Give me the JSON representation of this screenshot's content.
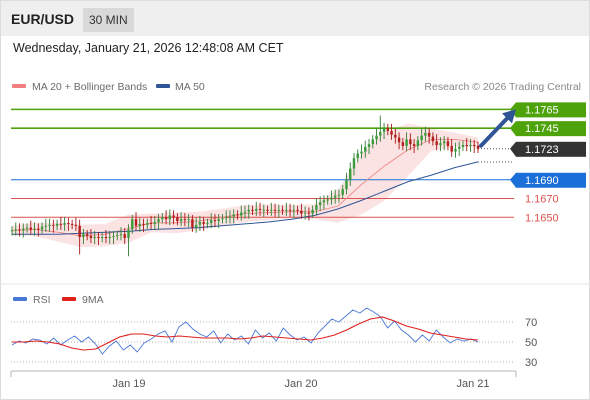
{
  "header": {
    "symbol": "EUR/USD",
    "timeframe": "30 MIN"
  },
  "timestamp": "Wednesday, January 21, 2026 12:48:08 AM CET",
  "legend": [
    {
      "label": "MA 20 + Bollinger Bands",
      "color": "#f08080"
    },
    {
      "label": "MA 50",
      "color": "#2f5597"
    }
  ],
  "credit": "Research © 2026 Trading Central",
  "indicator_legend": [
    {
      "label": "RSI",
      "color": "#4a78d6"
    },
    {
      "label": "9MA",
      "color": "#e0201b"
    }
  ],
  "chart_data": [
    {
      "type": "candlestick",
      "y_range": [
        1.158,
        1.1775
      ],
      "x_labels": [
        "Jan 19",
        "Jan 20",
        "Jan 21"
      ],
      "levels": [
        {
          "value": 1.1765,
          "label": "1.1765",
          "role": "resistance",
          "color": "#4ea20a"
        },
        {
          "value": 1.1745,
          "label": "1.1745",
          "role": "resistance",
          "color": "#4ea20a"
        },
        {
          "value": 1.1723,
          "label": "1.1723",
          "role": "last price",
          "color": "#333333"
        },
        {
          "value": 1.169,
          "label": "1.1690",
          "role": "pivot",
          "color": "#1a6fd8"
        },
        {
          "value": 1.167,
          "label": "1.1670",
          "role": "support",
          "color": "#d9534f"
        },
        {
          "value": 1.165,
          "label": "1.1650",
          "role": "support",
          "color": "#d9534f"
        }
      ],
      "trend_arrow": {
        "direction": "up",
        "color": "#2f5597"
      },
      "series": [
        {
          "name": "Price",
          "close": [
            1.1636,
            1.1637,
            1.1636,
            1.1638,
            1.1639,
            1.1637,
            1.1638,
            1.1637,
            1.164,
            1.1641,
            1.1642,
            1.1641,
            1.1643,
            1.1642,
            1.1644,
            1.1643,
            1.1642,
            1.1641,
            1.1629,
            1.1632,
            1.163,
            1.1628,
            1.1629,
            1.1628,
            1.1629,
            1.1628,
            1.1629,
            1.163,
            1.1631,
            1.1632,
            1.1628,
            1.1637,
            1.1648,
            1.1641,
            1.1643,
            1.1642,
            1.1644,
            1.1643,
            1.1645,
            1.1648,
            1.165,
            1.1648,
            1.1652,
            1.165,
            1.1646,
            1.1648,
            1.1647,
            1.1648,
            1.1639,
            1.1642,
            1.1645,
            1.1643,
            1.1644,
            1.1647,
            1.1646,
            1.1648,
            1.1649,
            1.165,
            1.1651,
            1.1653,
            1.1652,
            1.1655,
            1.1656,
            1.1658,
            1.1657,
            1.1659,
            1.1658,
            1.1658,
            1.1657,
            1.1658,
            1.1657,
            1.1658,
            1.1657,
            1.1658,
            1.1657,
            1.1658,
            1.1657,
            1.1654,
            1.1655,
            1.1654,
            1.1658,
            1.1663,
            1.1666,
            1.1668,
            1.1669,
            1.1671,
            1.1673,
            1.1674,
            1.168,
            1.169,
            1.1702,
            1.1713,
            1.1718,
            1.172,
            1.1725,
            1.1728,
            1.1733,
            1.1737,
            1.1741,
            1.1745,
            1.1742,
            1.1738,
            1.1735,
            1.173,
            1.1726,
            1.1733,
            1.1728,
            1.1726,
            1.1732,
            1.1737,
            1.174,
            1.1736,
            1.1731,
            1.1727,
            1.1729,
            1.1731,
            1.1726,
            1.172,
            1.1723,
            1.1725,
            1.1727,
            1.1726,
            1.1727,
            1.1726,
            1.1723
          ]
        },
        {
          "name": "MA 50",
          "values": [
            1.1632,
            1.1632,
            1.1632,
            1.1633,
            1.1634,
            1.1635,
            1.1637,
            1.1638,
            1.1639,
            1.1641,
            1.1643,
            1.1645,
            1.1648,
            1.1652,
            1.1659,
            1.1668,
            1.1678,
            1.1688,
            1.1695,
            1.1703,
            1.1709
          ]
        },
        {
          "name": "MA 20",
          "values": [
            1.1636,
            1.1637,
            1.1634,
            1.163,
            1.1632,
            1.1638,
            1.1644,
            1.1644,
            1.1646,
            1.165,
            1.1654,
            1.1655,
            1.1656,
            1.1656,
            1.1662,
            1.1685,
            1.1705,
            1.1722,
            1.1733,
            1.1733,
            1.173
          ]
        },
        {
          "name": "Bollinger upper",
          "values": [
            1.1641,
            1.1644,
            1.1644,
            1.1642,
            1.1643,
            1.1653,
            1.1654,
            1.1655,
            1.1656,
            1.1659,
            1.1663,
            1.1664,
            1.1663,
            1.1664,
            1.168,
            1.1717,
            1.1742,
            1.175,
            1.1745,
            1.174,
            1.1735
          ]
        },
        {
          "name": "Bollinger lower",
          "values": [
            1.1631,
            1.163,
            1.1624,
            1.1618,
            1.1619,
            1.1623,
            1.1634,
            1.1633,
            1.1636,
            1.1641,
            1.1645,
            1.1647,
            1.1649,
            1.1648,
            1.1644,
            1.1653,
            1.1668,
            1.1694,
            1.1721,
            1.1725,
            1.1725
          ]
        }
      ]
    },
    {
      "type": "line",
      "y_range": [
        20,
        80
      ],
      "y_ticks": [
        70,
        50,
        30
      ],
      "reference_lines": [
        70,
        50,
        30
      ],
      "series": [
        {
          "name": "RSI",
          "values": [
            47,
            51,
            49,
            53,
            52,
            48,
            54,
            47,
            52,
            56,
            50,
            55,
            48,
            38,
            46,
            51,
            42,
            47,
            40,
            49,
            53,
            58,
            61,
            50,
            65,
            70,
            63,
            58,
            55,
            61,
            49,
            58,
            52,
            56,
            48,
            62,
            54,
            59,
            51,
            64,
            57,
            52,
            55,
            49,
            59,
            66,
            73,
            70,
            76,
            82,
            79,
            84,
            80,
            75,
            64,
            71,
            62,
            57,
            50,
            57,
            51,
            62,
            55,
            49,
            53,
            51,
            53,
            50
          ]
        },
        {
          "name": "9MA",
          "values": [
            50,
            50,
            51,
            50,
            48,
            44,
            42,
            43,
            49,
            55,
            58,
            58,
            56,
            55,
            56,
            55,
            54,
            54,
            54,
            53,
            54,
            56,
            55,
            54,
            53,
            52,
            54,
            57,
            62,
            68,
            73,
            75,
            71,
            66,
            63,
            59,
            57,
            55,
            53,
            52
          ]
        }
      ]
    }
  ]
}
